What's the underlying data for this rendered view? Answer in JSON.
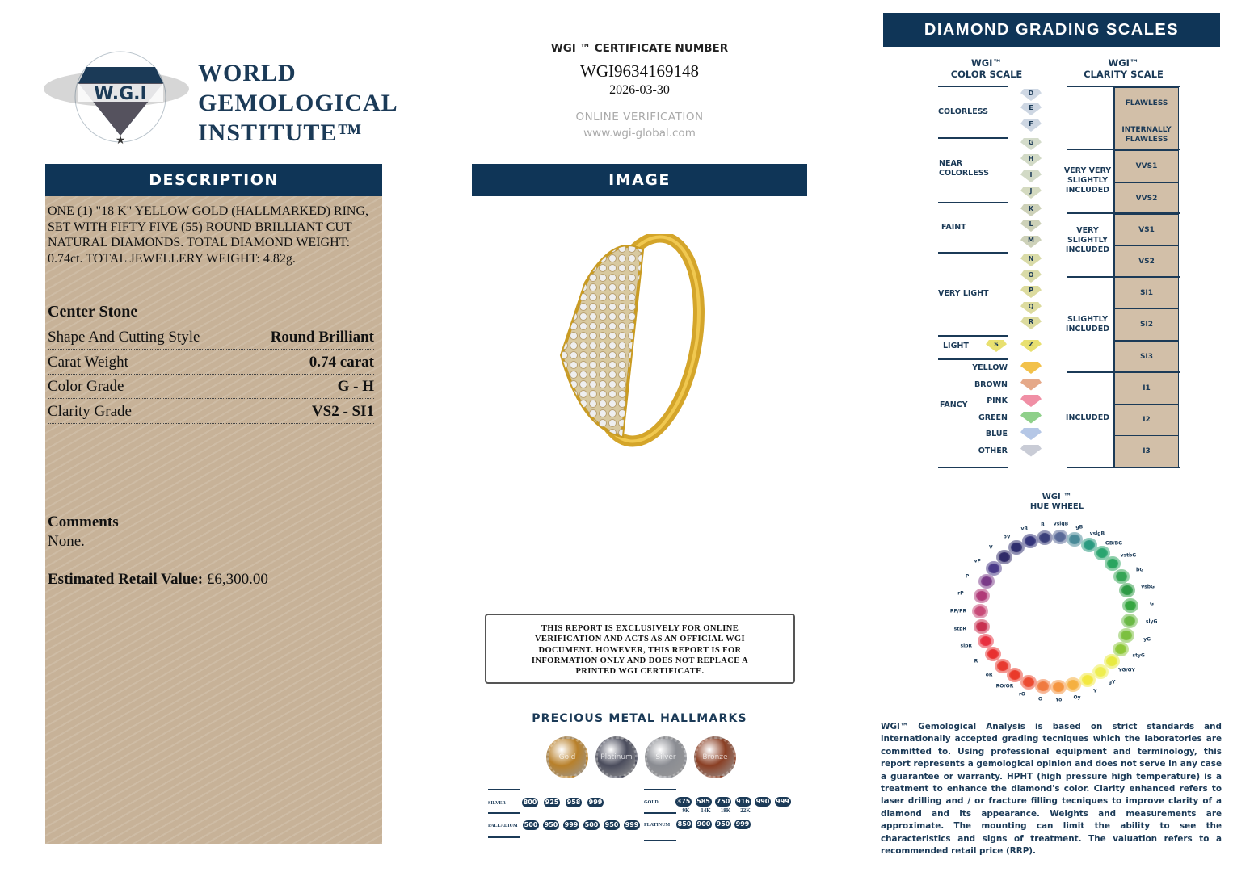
{
  "logo": {
    "ring_text": "WORLD GEMOLOGICAL INSTITUTE",
    "mark": "W.G.I",
    "line1": "WORLD",
    "line2": "GEMOLOGICAL",
    "line3": "INSTITUTE™"
  },
  "description": {
    "header": "DESCRIPTION",
    "text": "ONE (1) \"18 K\" YELLOW GOLD (HALLMARKED) RING, SET WITH FIFTY FIVE (55) ROUND BRILLIANT CUT NATURAL DIAMONDS. TOTAL DIAMOND WEIGHT: 0.74ct. TOTAL JEWELLERY WEIGHT: 4.82g.",
    "center_stone_title": "Center Stone",
    "rows": [
      {
        "label": "Shape And Cutting Style",
        "value": "Round Brilliant"
      },
      {
        "label": "Carat Weight",
        "value": "0.74 carat"
      },
      {
        "label": "Color Grade",
        "value": "G - H"
      },
      {
        "label": "Clarity Grade",
        "value": "VS2 - SI1"
      }
    ],
    "comments_title": "Comments",
    "comments": "None.",
    "retail_label": "Estimated Retail Value:",
    "retail_value": "£6,300.00"
  },
  "certificate": {
    "title": "WGI ™ CERTIFICATE NUMBER",
    "number": "WGI9634169148",
    "date": "2026-03-30",
    "verification_label": "ONLINE VERIFICATION",
    "url": "www.wgi-global.com"
  },
  "image": {
    "header": "IMAGE"
  },
  "disclaimer": "THIS REPORT IS EXCLUSIVELY FOR ONLINE VERIFICATION AND ACTS AS AN OFFICIAL WGI DOCUMENT. HOWEVER, THIS REPORT IS FOR INFORMATION ONLY AND DOES NOT REPLACE A PRINTED WGI CERTIFICATE.",
  "hallmarks": {
    "title": "PRECIOUS METAL HALLMARKS",
    "medals": [
      {
        "label": "Gold",
        "color": "#b8802a"
      },
      {
        "label": "Platinum",
        "color": "#4a4c5c"
      },
      {
        "label": "Silver",
        "color": "#8a8c92"
      },
      {
        "label": "Bronze",
        "color": "#8a3f24"
      }
    ],
    "silver": {
      "label": "SILVER",
      "values": [
        "800",
        "925",
        "958",
        "999"
      ]
    },
    "gold": {
      "label": "GOLD",
      "values": [
        "375",
        "585",
        "750",
        "916",
        "990",
        "999"
      ],
      "karats": [
        "9K",
        "14K",
        "18K",
        "22K"
      ]
    },
    "palladium": {
      "label": "PALLADIUM",
      "values": [
        "500",
        "950",
        "999",
        "500",
        "950",
        "999"
      ]
    },
    "platinum": {
      "label": "PLATINUM",
      "values": [
        "850",
        "900",
        "950",
        "999"
      ]
    }
  },
  "grading": {
    "header": "DIAMOND GRADING  SCALES",
    "color_scale_title": [
      "WGI™",
      "COLOR SCALE"
    ],
    "clarity_scale_title": [
      "WGI™",
      "CLARITY SCALE"
    ],
    "color_groups": [
      "COLORLESS",
      "NEAR COLORLESS",
      "FAINT",
      "VERY LIGHT",
      "LIGHT",
      "FANCY"
    ],
    "color_grades": [
      "D",
      "E",
      "F",
      "G",
      "H",
      "I",
      "J",
      "K",
      "L",
      "M",
      "N",
      "O",
      "P",
      "Q",
      "R"
    ],
    "light_grades": [
      "S",
      "Z"
    ],
    "fancy": [
      {
        "label": "YELLOW",
        "color": "#f2c14a"
      },
      {
        "label": "BROWN",
        "color": "#e5a989"
      },
      {
        "label": "PINK",
        "color": "#f08fa5"
      },
      {
        "label": "GREEN",
        "color": "#8fd08a"
      },
      {
        "label": "BLUE",
        "color": "#b5c7e6"
      },
      {
        "label": "OTHER",
        "color": "#c9ccd6"
      }
    ],
    "clarity_groups": [
      "VERY VERY SLIGHTLY INCLUDED",
      "VERY SLIGHTLY INCLUDED",
      "SLIGHTLY INCLUDED",
      "INCLUDED"
    ],
    "clarity_grades": [
      "FLAWLESS",
      "INTERNALLY FLAWLESS",
      "VVS1",
      "VVS2",
      "VS1",
      "VS2",
      "SI1",
      "SI2",
      "SI3",
      "I1",
      "I2",
      "I3"
    ]
  },
  "hue_wheel": {
    "title": [
      "WGI ™",
      "HUE WHEEL"
    ],
    "hues": [
      {
        "l": "B",
        "c": "#3a3f7a"
      },
      {
        "l": "vslgB",
        "c": "#5a6a98"
      },
      {
        "l": "gB",
        "c": "#4a8a98"
      },
      {
        "l": "vslgB",
        "c": "#2a9a80"
      },
      {
        "l": "GB/BG",
        "c": "#2aa570"
      },
      {
        "l": "vstbG",
        "c": "#2aa560"
      },
      {
        "l": "bG",
        "c": "#35a555"
      },
      {
        "l": "vsbG",
        "c": "#2e9a45"
      },
      {
        "l": "G",
        "c": "#35a540"
      },
      {
        "l": "slyG",
        "c": "#6ab845"
      },
      {
        "l": "yG",
        "c": "#7cc040"
      },
      {
        "l": "styG",
        "c": "#8ec83a"
      },
      {
        "l": "YG/GY",
        "c": "#e8ea40"
      },
      {
        "l": "gY",
        "c": "#eeee50"
      },
      {
        "l": "Y",
        "c": "#f3e840"
      },
      {
        "l": "Oy",
        "c": "#f5b040"
      },
      {
        "l": "Yo",
        "c": "#f59540"
      },
      {
        "l": "O",
        "c": "#f07a40"
      },
      {
        "l": "rO",
        "c": "#ec4a30"
      },
      {
        "l": "RO/OR",
        "c": "#ea3a2a"
      },
      {
        "l": "oR",
        "c": "#e83a30"
      },
      {
        "l": "R",
        "c": "#e83030"
      },
      {
        "l": "slpR",
        "c": "#e83040"
      },
      {
        "l": "stpR",
        "c": "#c83050"
      },
      {
        "l": "RP/PR",
        "c": "#c84a78"
      },
      {
        "l": "rP",
        "c": "#b03a78"
      },
      {
        "l": "P",
        "c": "#7a3a88"
      },
      {
        "l": "vP",
        "c": "#4a3a88"
      },
      {
        "l": "V",
        "c": "#302a68"
      },
      {
        "l": "bV",
        "c": "#2e2e6e"
      },
      {
        "l": "vB",
        "c": "#34347a"
      }
    ]
  },
  "footnote": "WGI™ Gemological Analysis is based on strict standards and internationally accepted grading tecniques which the laboratories are committed to. Using professional equipment and terminology, this report represents a gemological opinion and does not serve in any case a guarantee or warranty. HPHT (high pressure high temperature) is a treatment to enhance the diamond's color. Clarity enhanced refers to laser drilling and / or fracture filling tecniques to improve clarity of a diamond and its appearance. Weights and measurements are approximate. The mounting can limit the ability to see the characteristics and signs of treatment. The valuation refers to a recommended retail price (RRP)."
}
